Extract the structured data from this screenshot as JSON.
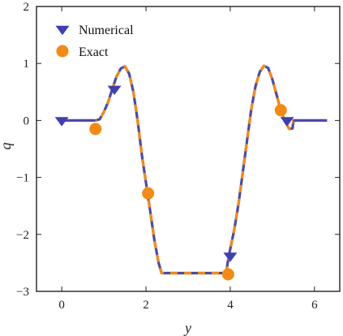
{
  "chart_data": {
    "type": "line",
    "xlabel": "y",
    "ylabel": "q",
    "xlim": [
      -0.6,
      6.6
    ],
    "ylim": [
      -3,
      2
    ],
    "xticks": [
      0,
      2,
      4,
      6
    ],
    "yticks": [
      2,
      1,
      0,
      -1,
      -2,
      -3
    ],
    "grid": false,
    "legend_position": "top-left",
    "series": [
      {
        "name": "Numerical",
        "line_color": "#4b4ba6",
        "marker_color": "#3f3fb0",
        "marker": "triangle-down",
        "line": [
          [
            0.0,
            0.0
          ],
          [
            0.8,
            0.0
          ],
          [
            0.9,
            0.02
          ],
          [
            1.0,
            0.15
          ],
          [
            1.1,
            0.32
          ],
          [
            1.2,
            0.55
          ],
          [
            1.3,
            0.77
          ],
          [
            1.4,
            0.91
          ],
          [
            1.5,
            0.95
          ],
          [
            1.6,
            0.82
          ],
          [
            1.7,
            0.5
          ],
          [
            1.8,
            0.0
          ],
          [
            1.9,
            -0.6
          ],
          [
            2.0,
            -1.1
          ],
          [
            2.1,
            -1.6
          ],
          [
            2.2,
            -2.1
          ],
          [
            2.3,
            -2.5
          ],
          [
            2.37,
            -2.68
          ],
          [
            3.9,
            -2.68
          ],
          [
            3.96,
            -2.4
          ],
          [
            4.1,
            -1.9
          ],
          [
            4.2,
            -1.45
          ],
          [
            4.3,
            -0.9
          ],
          [
            4.4,
            -0.35
          ],
          [
            4.5,
            0.2
          ],
          [
            4.6,
            0.6
          ],
          [
            4.7,
            0.85
          ],
          [
            4.8,
            0.96
          ],
          [
            4.9,
            0.92
          ],
          [
            5.0,
            0.72
          ],
          [
            5.1,
            0.45
          ],
          [
            5.2,
            0.18
          ],
          [
            5.3,
            -0.02
          ],
          [
            5.4,
            -0.15
          ],
          [
            5.48,
            -0.14
          ],
          [
            5.5,
            0.0
          ],
          [
            6.3,
            0.0
          ]
        ],
        "markers": [
          [
            0.0,
            0.0
          ],
          [
            1.25,
            0.55
          ],
          [
            4.0,
            -2.38
          ],
          [
            5.35,
            0.0
          ]
        ]
      },
      {
        "name": "Exact",
        "line_color": "#f38a13",
        "marker_color": "#f38a13",
        "marker": "circle",
        "markers": [
          [
            0.8,
            -0.15
          ],
          [
            2.05,
            -1.28
          ],
          [
            3.95,
            -2.7
          ],
          [
            5.2,
            0.18
          ]
        ]
      }
    ]
  }
}
